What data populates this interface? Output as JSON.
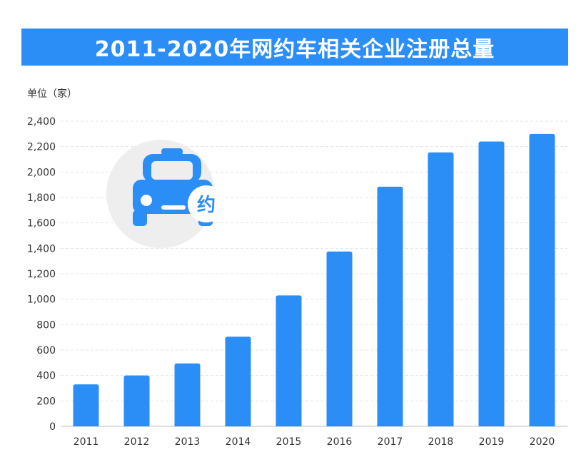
{
  "colors": {
    "title_background": "#2b8ef7",
    "bar": "#2b8ef7",
    "gridline": "#e3e3e3",
    "icon_circle": "#eeeeee",
    "icon_car": "#2b8ef7"
  },
  "chart_data": {
    "type": "bar",
    "title": "2011-2020年网约车相关企业注册总量",
    "unit_label": "单位（家）",
    "categories": [
      "2011",
      "2012",
      "2013",
      "2014",
      "2015",
      "2016",
      "2017",
      "2018",
      "2019",
      "2020"
    ],
    "values": [
      330,
      400,
      495,
      705,
      1030,
      1375,
      1885,
      2155,
      2240,
      2300
    ],
    "y_ticks": [
      "0",
      "200",
      "400",
      "600",
      "800",
      "1,000",
      "1,200",
      "1,400",
      "1,600",
      "1,800",
      "2,000",
      "2,200",
      "2,400"
    ],
    "ylim": [
      0,
      2400
    ],
    "grid": true,
    "icon_badge_text": "约",
    "icon_name": "taxi-car-icon"
  }
}
